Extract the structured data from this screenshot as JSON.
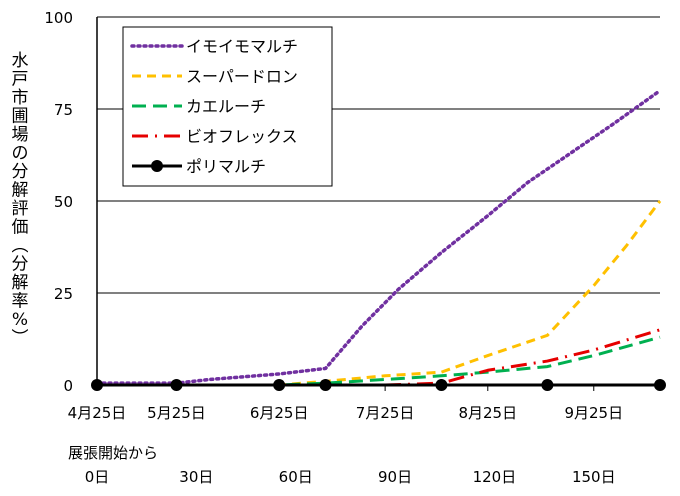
{
  "chart_data": {
    "type": "line",
    "title": "",
    "ylabel": "水戸市圃場の分解評価（分解率%）",
    "xlabel": "",
    "ylim": [
      0,
      100
    ],
    "yticks": [
      0,
      25,
      50,
      75,
      100
    ],
    "x_range": [
      0,
      170
    ],
    "x_ticks": [
      {
        "x": 0,
        "label": "4月25日"
      },
      {
        "x": 24,
        "label": "5月25日"
      },
      {
        "x": 55,
        "label": "6月25日"
      },
      {
        "x": 87,
        "label": "7月25日"
      },
      {
        "x": 118,
        "label": "8月25日"
      },
      {
        "x": 150,
        "label": "9月25日"
      }
    ],
    "elapsed_axis": {
      "label": "展張開始から",
      "ticks": [
        {
          "x": 0,
          "label": "0日"
        },
        {
          "x": 30,
          "label": "30日"
        },
        {
          "x": 60,
          "label": "60日"
        },
        {
          "x": 90,
          "label": "90日"
        },
        {
          "x": 120,
          "label": "120日"
        },
        {
          "x": 150,
          "label": "150日"
        }
      ]
    },
    "grid": "horizontal",
    "legend_position": "top-left",
    "series": [
      {
        "name": "イモイモマルチ",
        "color": "#7030a0",
        "dash": "dotted",
        "marker": "none",
        "points": [
          [
            0,
            0.5
          ],
          [
            24,
            0.5
          ],
          [
            34,
            1.5
          ],
          [
            55,
            3
          ],
          [
            69,
            4.5
          ],
          [
            80,
            16
          ],
          [
            91,
            26
          ],
          [
            104,
            36
          ],
          [
            118,
            46
          ],
          [
            130,
            55
          ],
          [
            143,
            63
          ],
          [
            156,
            71
          ],
          [
            170,
            80
          ]
        ]
      },
      {
        "name": "スーパードロン",
        "color": "#ffc000",
        "dash": "dashed",
        "marker": "none",
        "points": [
          [
            0,
            0
          ],
          [
            24,
            0
          ],
          [
            55,
            0
          ],
          [
            69,
            1
          ],
          [
            87,
            2.5
          ],
          [
            104,
            3.5
          ],
          [
            118,
            8
          ],
          [
            136,
            13.5
          ],
          [
            150,
            27
          ],
          [
            160,
            38
          ],
          [
            170,
            50
          ]
        ]
      },
      {
        "name": "カエルーチ",
        "color": "#00b050",
        "dash": "long-dash",
        "marker": "none",
        "points": [
          [
            0,
            0
          ],
          [
            24,
            0
          ],
          [
            55,
            0
          ],
          [
            69,
            0.5
          ],
          [
            87,
            1.5
          ],
          [
            104,
            2.5
          ],
          [
            118,
            3.5
          ],
          [
            136,
            5
          ],
          [
            150,
            8
          ],
          [
            170,
            13
          ]
        ]
      },
      {
        "name": "ビオフレックス",
        "color": "#e60000",
        "dash": "dash-dot",
        "marker": "none",
        "points": [
          [
            0,
            0
          ],
          [
            24,
            0
          ],
          [
            55,
            0
          ],
          [
            69,
            0
          ],
          [
            87,
            0
          ],
          [
            104,
            0.5
          ],
          [
            118,
            4
          ],
          [
            136,
            6.5
          ],
          [
            150,
            9.5
          ],
          [
            170,
            15
          ]
        ]
      },
      {
        "name": "ポリマルチ",
        "color": "#000000",
        "dash": "solid",
        "marker": "circle",
        "points": [
          [
            0,
            0
          ],
          [
            24,
            0
          ],
          [
            55,
            0
          ],
          [
            69,
            0
          ],
          [
            104,
            0
          ],
          [
            136,
            0
          ],
          [
            170,
            0
          ]
        ]
      }
    ]
  }
}
